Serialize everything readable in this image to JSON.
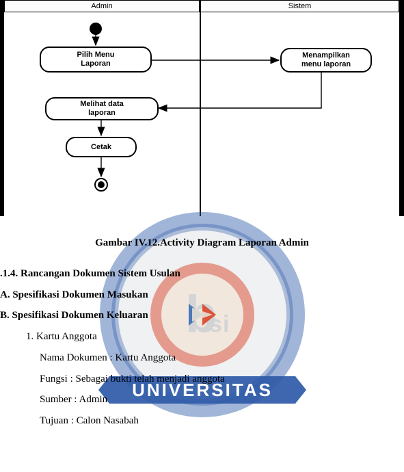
{
  "diagram": {
    "lanes": {
      "left": "Admin",
      "right": "Sistem"
    },
    "nodes": {
      "pilih_menu_laporan": "Pilih Menu\nLaporan",
      "menampilkan_menu_laporan": "Menampilkan\nmenu laporan",
      "melihat_data_laporan": "Melihat data\nlaporan",
      "cetak": "Cetak"
    }
  },
  "caption": "Gambar IV.12.Activity Diagram Laporan Admin",
  "headings": {
    "h_314": ".1.4.   Rancangan Dokumen Sistem Usulan",
    "h_A": "A.  Spesifikasi Dokumen Masukan",
    "h_B": "B.  Spesifikasi Dokumen Keluaran"
  },
  "list": {
    "item1": "1.   Kartu Anggota",
    "nama": "Nama Dokumen : Kartu Anggota",
    "fungsi": "Fungsi : Sebagai bukti telah menjadi anggota",
    "sumber": "Sumber : Admin",
    "tujuan": "Tujuan : Calon Nasabah"
  },
  "watermark": {
    "colors": {
      "outer": "#2f5aa8",
      "inner_bg": "#f7f7f5",
      "band": "#2f5aa8",
      "seal_outer": "#d9462a",
      "seal_inner": "#f2efe6",
      "chevron_left": "#3a6fb5",
      "chevron_right": "#d9462a",
      "triangle": "#e6e1d5",
      "banner": "#2f5aa8",
      "banner_text": "#ffffff",
      "mono": "#cfd2d6"
    },
    "banner_text": "UNIVERSITAS"
  }
}
